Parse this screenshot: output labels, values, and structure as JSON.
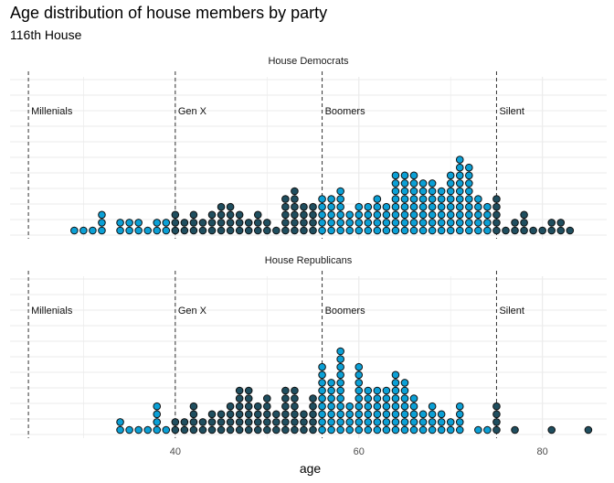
{
  "title": "Age distribution of house members by party",
  "subtitle": "116th House",
  "chart_data": {
    "type": "dotplot",
    "xlabel": "age",
    "xlim": [
      22,
      87
    ],
    "x_ticks": [
      40,
      60,
      80
    ],
    "grid": true,
    "colors": {
      "generation_in": "#1f4e5f",
      "generation_alt": "#0ba0d6",
      "dot_stroke": "#111111",
      "guide": "#333333",
      "grid": "#ebebeb"
    },
    "generation_boundaries": [
      24,
      40,
      56,
      75
    ],
    "generation_labels": [
      {
        "label": "Millenials",
        "x": 24
      },
      {
        "label": "Gen X",
        "x": 40
      },
      {
        "label": "Boomers",
        "x": 56
      },
      {
        "label": "Silent",
        "x": 75
      }
    ],
    "panels": [
      {
        "name": "House Democrats",
        "age_counts": [
          [
            29,
            1
          ],
          [
            30,
            1
          ],
          [
            31,
            1
          ],
          [
            32,
            3
          ],
          [
            34,
            2
          ],
          [
            35,
            2
          ],
          [
            36,
            2
          ],
          [
            37,
            1
          ],
          [
            38,
            2
          ],
          [
            39,
            2
          ],
          [
            40,
            3
          ],
          [
            41,
            2
          ],
          [
            42,
            3
          ],
          [
            43,
            2
          ],
          [
            44,
            3
          ],
          [
            45,
            4
          ],
          [
            46,
            4
          ],
          [
            47,
            3
          ],
          [
            48,
            2
          ],
          [
            49,
            3
          ],
          [
            50,
            2
          ],
          [
            51,
            1
          ],
          [
            52,
            5
          ],
          [
            53,
            6
          ],
          [
            54,
            4
          ],
          [
            55,
            4
          ],
          [
            56,
            5
          ],
          [
            57,
            5
          ],
          [
            58,
            6
          ],
          [
            59,
            3
          ],
          [
            60,
            4
          ],
          [
            61,
            4
          ],
          [
            62,
            5
          ],
          [
            63,
            4
          ],
          [
            64,
            8
          ],
          [
            65,
            8
          ],
          [
            66,
            8
          ],
          [
            67,
            7
          ],
          [
            68,
            7
          ],
          [
            69,
            6
          ],
          [
            70,
            8
          ],
          [
            71,
            10
          ],
          [
            72,
            9
          ],
          [
            73,
            5
          ],
          [
            74,
            4
          ],
          [
            75,
            5
          ],
          [
            76,
            1
          ],
          [
            77,
            2
          ],
          [
            78,
            3
          ],
          [
            79,
            1
          ],
          [
            80,
            1
          ],
          [
            81,
            2
          ],
          [
            82,
            2
          ],
          [
            83,
            1
          ]
        ]
      },
      {
        "name": "House Republicans",
        "age_counts": [
          [
            34,
            2
          ],
          [
            35,
            1
          ],
          [
            36,
            1
          ],
          [
            37,
            1
          ],
          [
            38,
            4
          ],
          [
            39,
            1
          ],
          [
            40,
            2
          ],
          [
            41,
            2
          ],
          [
            42,
            4
          ],
          [
            43,
            2
          ],
          [
            44,
            3
          ],
          [
            45,
            3
          ],
          [
            46,
            4
          ],
          [
            47,
            6
          ],
          [
            48,
            6
          ],
          [
            49,
            4
          ],
          [
            50,
            5
          ],
          [
            51,
            3
          ],
          [
            52,
            6
          ],
          [
            53,
            6
          ],
          [
            54,
            3
          ],
          [
            55,
            5
          ],
          [
            56,
            9
          ],
          [
            57,
            7
          ],
          [
            58,
            11
          ],
          [
            59,
            4
          ],
          [
            60,
            9
          ],
          [
            61,
            6
          ],
          [
            62,
            6
          ],
          [
            63,
            6
          ],
          [
            64,
            8
          ],
          [
            65,
            7
          ],
          [
            66,
            5
          ],
          [
            67,
            3
          ],
          [
            68,
            4
          ],
          [
            69,
            3
          ],
          [
            70,
            2
          ],
          [
            71,
            4
          ],
          [
            73,
            1
          ],
          [
            74,
            1
          ],
          [
            75,
            4
          ],
          [
            77,
            1
          ],
          [
            81,
            1
          ],
          [
            85,
            1
          ]
        ]
      }
    ]
  }
}
